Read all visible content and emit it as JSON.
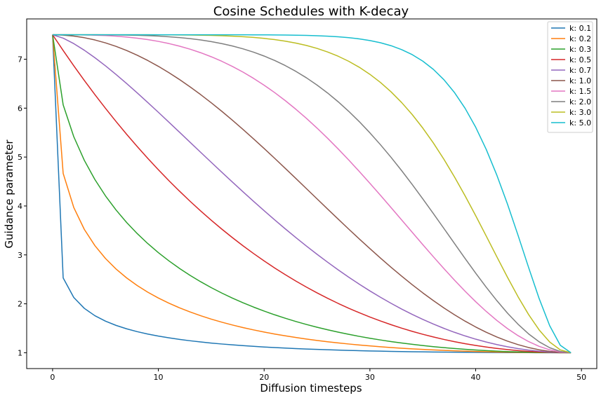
{
  "chart_data": {
    "type": "line",
    "title": "Cosine Schedules with K-decay",
    "xlabel": "Diffusion timesteps",
    "ylabel": "Guidance parameter",
    "xlim": [
      -2.45,
      51.45
    ],
    "ylim": [
      0.676,
      7.824
    ],
    "xticks": [
      0,
      10,
      20,
      30,
      40,
      50
    ],
    "yticks": [
      1,
      2,
      3,
      4,
      5,
      6,
      7
    ],
    "grid": false,
    "legend_position": "top-right",
    "x_range": [
      0,
      49
    ],
    "y_start": 7.5,
    "y_end": 1.0,
    "series": [
      {
        "name": "k: 0.1",
        "k": 0.1,
        "color": "#1f77b4"
      },
      {
        "name": "k: 0.2",
        "k": 0.2,
        "color": "#ff7f0e"
      },
      {
        "name": "k: 0.3",
        "k": 0.3,
        "color": "#2ca02c"
      },
      {
        "name": "k: 0.5",
        "k": 0.5,
        "color": "#d62728"
      },
      {
        "name": "k: 0.7",
        "k": 0.7,
        "color": "#9467bd"
      },
      {
        "name": "k: 1.0",
        "k": 1.0,
        "color": "#8c564b"
      },
      {
        "name": "k: 1.5",
        "k": 1.5,
        "color": "#e377c2"
      },
      {
        "name": "k: 2.0",
        "k": 2.0,
        "color": "#7f7f7f"
      },
      {
        "name": "k: 3.0",
        "k": 3.0,
        "color": "#bcbd22"
      },
      {
        "name": "k: 5.0",
        "k": 5.0,
        "color": "#17becf"
      }
    ]
  }
}
